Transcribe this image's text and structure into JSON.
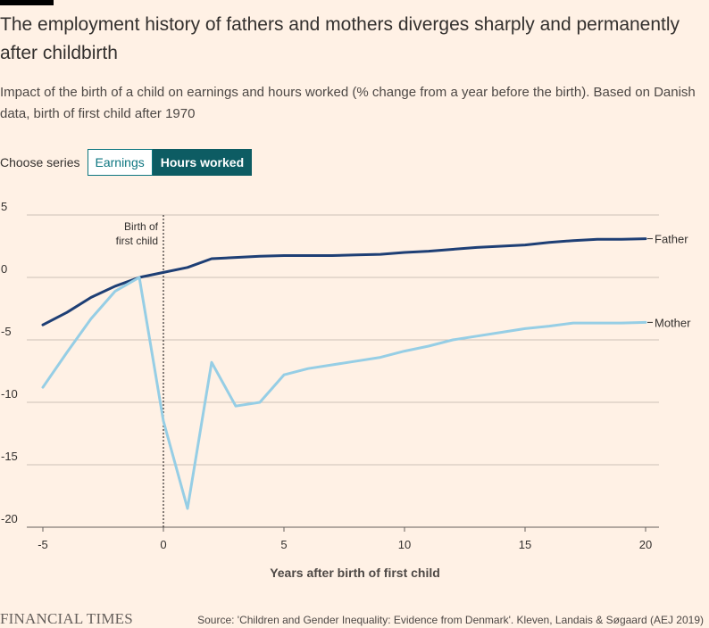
{
  "header": {
    "title": "The employment history of fathers and mothers diverges sharply and permanently after childbirth",
    "subtitle": "Impact of the birth of a child on earnings and hours worked (% change from a year before the birth). Based on Danish data, birth of first child after 1970"
  },
  "controls": {
    "label": "Choose series",
    "options": [
      "Earnings",
      "Hours worked"
    ],
    "selected": "Hours worked"
  },
  "chart_data": {
    "type": "line",
    "xlabel": "Years after birth of first child",
    "ylabel": "",
    "xlim": [
      -5,
      20
    ],
    "ylim": [
      -20,
      5
    ],
    "xticks": [
      -5,
      0,
      5,
      10,
      15,
      20
    ],
    "yticks": [
      5,
      0,
      -5,
      -10,
      -15,
      -20
    ],
    "grid": true,
    "annotation": {
      "x": 0,
      "lines": [
        "Birth of",
        "first child"
      ]
    },
    "x": [
      -5,
      -4,
      -3,
      -2,
      -1,
      0,
      1,
      2,
      3,
      4,
      5,
      6,
      7,
      8,
      9,
      10,
      11,
      12,
      13,
      14,
      15,
      16,
      17,
      18,
      19,
      20
    ],
    "series": [
      {
        "name": "Father",
        "color": "#1e3f75",
        "values": [
          -3.8,
          -2.8,
          -1.6,
          -0.7,
          0.0,
          0.4,
          0.8,
          1.5,
          1.6,
          1.7,
          1.75,
          1.75,
          1.75,
          1.8,
          1.85,
          2.0,
          2.1,
          2.25,
          2.4,
          2.5,
          2.6,
          2.8,
          2.95,
          3.05,
          3.05,
          3.1
        ]
      },
      {
        "name": "Mother",
        "color": "#96cee5",
        "values": [
          -8.8,
          -6.0,
          -3.3,
          -1.1,
          0.0,
          -11.5,
          -18.5,
          -6.8,
          -10.3,
          -10.0,
          -7.8,
          -7.3,
          -7.0,
          -6.7,
          -6.4,
          -5.9,
          -5.5,
          -5.0,
          -4.7,
          -4.4,
          -4.1,
          -3.9,
          -3.65,
          -3.65,
          -3.65,
          -3.6
        ]
      }
    ]
  },
  "footer": {
    "brand": "FINANCIAL TIMES",
    "source": "Source: 'Children and Gender Inequality: Evidence from Denmark'. Kleven, Landais & Søgaard (AEJ 2019)"
  }
}
